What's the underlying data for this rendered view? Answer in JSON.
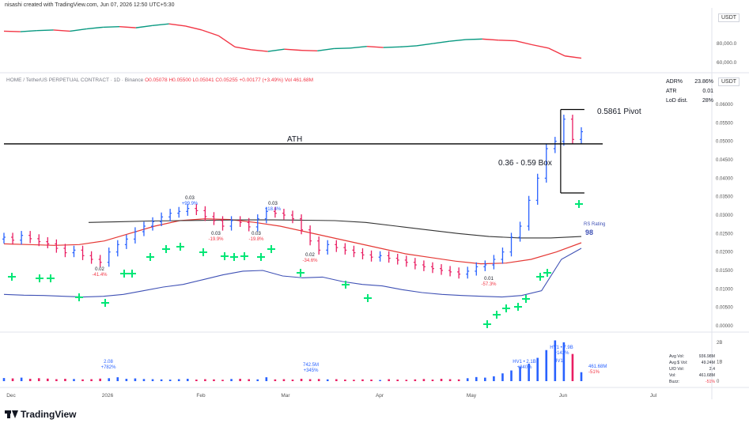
{
  "header": {
    "title": "nisashi created with TradingView.com, Jun 07, 2026 12:50 UTC+5:30",
    "top_currency": "USDT",
    "main_currency": "USDT"
  },
  "legend": {
    "symbol": "HOME / TetherUS PERPETUAL CONTRACT · 1D · Binance",
    "open": "O0.05078",
    "high": "H0.05500",
    "low": "L0.05041",
    "close": "C0.05255",
    "change": "+0.00177 (+3.49%)",
    "volume": "Vol 461.68M"
  },
  "stats": {
    "rows": [
      {
        "label": "ADR%",
        "value": "23.86%"
      },
      {
        "label": "ATR",
        "value": "0.01"
      },
      {
        "label": "LoD dist.",
        "value": "28%"
      }
    ]
  },
  "volume_stats": {
    "rows": [
      {
        "label": "Avg Vol:",
        "value": "936.98M"
      },
      {
        "label": "Avg $ Vol:",
        "value": "49.24M"
      },
      {
        "label": "U/D Vol:",
        "value": "2.4"
      },
      {
        "label": "Vol:",
        "value": "461.68M"
      },
      {
        "label": "Buzz:",
        "value": "-51%"
      }
    ]
  },
  "brand": {
    "logo_text": "TradingView"
  },
  "colors": {
    "up": "#089981",
    "down": "#f23645",
    "bar_up": "#2962ff",
    "bar_down": "#e91e63",
    "rs_line": "#3f51b5",
    "ma_red": "#e53935",
    "ma_black": "#333333",
    "marker_green": "#00e676"
  },
  "chart_data": {
    "type": "line",
    "title": "",
    "x_axis": {
      "tick_labels": [
        "Dec",
        "2026",
        "Feb",
        "Mar",
        "Apr",
        "May",
        "Jun",
        "Jul"
      ]
    },
    "top_panel": {
      "series_name": "",
      "y_tick_labels": [
        "80,000.0",
        "60,000.0"
      ],
      "values": [
        92000,
        91500,
        92500,
        93000,
        92000,
        94000,
        95500,
        96000,
        95000,
        97000,
        98500,
        96500,
        93000,
        88000,
        78000,
        75500,
        74000,
        76000,
        75000,
        74500,
        76500,
        77000,
        78500,
        77500,
        78000,
        79000,
        81000,
        83000,
        84500,
        85000,
        84000,
        83500,
        80000,
        77000,
        70000,
        68000
      ]
    },
    "main_panel": {
      "y_tick_labels": [
        "0.06000",
        "0.05500",
        "0.05000",
        "0.04500",
        "0.04000",
        "0.03500",
        "0.03000",
        "0.02500",
        "0.02000",
        "0.01500",
        "0.01000",
        "0.00500",
        "0.00000"
      ],
      "ylim": [
        0.0,
        0.06
      ],
      "candles": [
        {
          "o": 0.0235,
          "c": 0.024
        },
        {
          "o": 0.024,
          "c": 0.0232
        },
        {
          "o": 0.0232,
          "c": 0.0245
        },
        {
          "o": 0.0245,
          "c": 0.0236
        },
        {
          "o": 0.0236,
          "c": 0.0228
        },
        {
          "o": 0.0228,
          "c": 0.0222
        },
        {
          "o": 0.0222,
          "c": 0.021
        },
        {
          "o": 0.021,
          "c": 0.0198
        },
        {
          "o": 0.0198,
          "c": 0.0205
        },
        {
          "o": 0.0205,
          "c": 0.019
        },
        {
          "o": 0.019,
          "c": 0.018
        },
        {
          "o": 0.018,
          "c": 0.0172
        },
        {
          "o": 0.0172,
          "c": 0.02
        },
        {
          "o": 0.02,
          "c": 0.022
        },
        {
          "o": 0.022,
          "c": 0.0235
        },
        {
          "o": 0.0235,
          "c": 0.0255
        },
        {
          "o": 0.0255,
          "c": 0.027
        },
        {
          "o": 0.027,
          "c": 0.0282
        },
        {
          "o": 0.0282,
          "c": 0.0295
        },
        {
          "o": 0.0295,
          "c": 0.0305
        },
        {
          "o": 0.0305,
          "c": 0.031
        },
        {
          "o": 0.031,
          "c": 0.0318
        },
        {
          "o": 0.0318,
          "c": 0.0312
        },
        {
          "o": 0.0312,
          "c": 0.0296
        },
        {
          "o": 0.0296,
          "c": 0.0285
        },
        {
          "o": 0.0285,
          "c": 0.027
        },
        {
          "o": 0.027,
          "c": 0.0285
        },
        {
          "o": 0.0285,
          "c": 0.028
        },
        {
          "o": 0.028,
          "c": 0.0268
        },
        {
          "o": 0.0268,
          "c": 0.029
        },
        {
          "o": 0.029,
          "c": 0.031
        },
        {
          "o": 0.031,
          "c": 0.0305
        },
        {
          "o": 0.0305,
          "c": 0.03
        },
        {
          "o": 0.03,
          "c": 0.029
        },
        {
          "o": 0.029,
          "c": 0.026
        },
        {
          "o": 0.026,
          "c": 0.023
        },
        {
          "o": 0.023,
          "c": 0.0205
        },
        {
          "o": 0.0205,
          "c": 0.022
        },
        {
          "o": 0.022,
          "c": 0.0212
        },
        {
          "o": 0.0212,
          "c": 0.0205
        },
        {
          "o": 0.0205,
          "c": 0.0198
        },
        {
          "o": 0.0198,
          "c": 0.0192
        },
        {
          "o": 0.0192,
          "c": 0.0186
        },
        {
          "o": 0.0186,
          "c": 0.019
        },
        {
          "o": 0.019,
          "c": 0.0183
        },
        {
          "o": 0.0183,
          "c": 0.0178
        },
        {
          "o": 0.0178,
          "c": 0.0172
        },
        {
          "o": 0.0172,
          "c": 0.0165
        },
        {
          "o": 0.0165,
          "c": 0.016
        },
        {
          "o": 0.016,
          "c": 0.0155
        },
        {
          "o": 0.0155,
          "c": 0.015
        },
        {
          "o": 0.015,
          "c": 0.0146
        },
        {
          "o": 0.0146,
          "c": 0.014
        },
        {
          "o": 0.014,
          "c": 0.0148
        },
        {
          "o": 0.0148,
          "c": 0.016
        },
        {
          "o": 0.016,
          "c": 0.0165
        },
        {
          "o": 0.0165,
          "c": 0.018
        },
        {
          "o": 0.018,
          "c": 0.02
        },
        {
          "o": 0.02,
          "c": 0.024
        },
        {
          "o": 0.024,
          "c": 0.027
        },
        {
          "o": 0.027,
          "c": 0.034
        },
        {
          "o": 0.034,
          "c": 0.04
        },
        {
          "o": 0.04,
          "c": 0.048
        },
        {
          "o": 0.048,
          "c": 0.05
        },
        {
          "o": 0.05,
          "c": 0.056
        },
        {
          "o": 0.056,
          "c": 0.0505
        },
        {
          "o": 0.0505,
          "c": 0.0526
        }
      ],
      "rs_line": [
        0.0085,
        0.0083,
        0.0082,
        0.008,
        0.0078,
        0.008,
        0.0085,
        0.0095,
        0.0105,
        0.0112,
        0.0125,
        0.0138,
        0.0148,
        0.015,
        0.0135,
        0.013,
        0.0132,
        0.012,
        0.0112,
        0.0108,
        0.0098,
        0.009,
        0.0085,
        0.0082,
        0.008,
        0.0078,
        0.0082,
        0.0095,
        0.018,
        0.021
      ],
      "ma_red": [
        0.0222,
        0.022,
        0.0218,
        0.022,
        0.023,
        0.025,
        0.027,
        0.0285,
        0.029,
        0.0288,
        0.028,
        0.027,
        0.0255,
        0.024,
        0.0225,
        0.021,
        0.0195,
        0.0185,
        0.0175,
        0.0168,
        0.017,
        0.018,
        0.02,
        0.0225
      ],
      "ma_black": [
        0.028,
        0.0282,
        0.0284,
        0.0285,
        0.0286,
        0.0287,
        0.0287,
        0.0286,
        0.0285,
        0.028,
        0.027,
        0.026,
        0.025,
        0.0242,
        0.0238,
        0.0238,
        0.0242
      ],
      "ath_level": 0.0493,
      "pivot_level": 0.0586,
      "box_low": 0.036,
      "annotations": [
        {
          "text": "0.5861 Pivot"
        },
        {
          "text": "0.36 - 0.59 Box"
        },
        {
          "text": "ATH"
        },
        {
          "text": "RS Rating"
        },
        {
          "text": "98"
        }
      ],
      "swing_labels": [
        {
          "value": "0.02",
          "pct": "-41.4%"
        },
        {
          "value": "0.03",
          "pct": "+99.9%"
        },
        {
          "value": "0.03",
          "pct": "-19.9%"
        },
        {
          "value": "0.03",
          "pct": "-19.8%"
        },
        {
          "value": "0.03",
          "pct": "+18.4%"
        },
        {
          "value": "0.02",
          "pct": "-34.6%"
        },
        {
          "value": "0.01",
          "pct": "-57.3%"
        }
      ]
    },
    "volume_panel": {
      "y_tick_labels": [
        "2B",
        "1B",
        "0"
      ],
      "values": [
        0.16,
        0.14,
        0.18,
        0.12,
        0.15,
        0.13,
        0.1,
        0.12,
        0.11,
        0.09,
        0.1,
        0.13,
        0.15,
        0.2,
        0.12,
        0.14,
        0.11,
        0.1,
        0.09,
        0.08,
        0.1,
        0.12,
        0.08,
        0.1,
        0.09,
        0.07,
        0.11,
        0.12,
        0.1,
        0.09,
        0.2,
        0.09,
        0.1,
        0.08,
        0.12,
        0.1,
        0.11,
        0.09,
        0.1,
        0.08,
        0.07,
        0.09,
        0.08,
        0.06,
        0.1,
        0.08,
        0.07,
        0.09,
        0.11,
        0.08,
        0.12,
        0.1,
        0.09,
        0.15,
        0.21,
        0.18,
        0.25,
        0.4,
        0.55,
        0.75,
        0.9,
        1.2,
        1.6,
        2.1,
        2.0,
        1.4,
        0.46
      ],
      "labels": [
        {
          "text": "2.08",
          "pct": "+782%"
        },
        {
          "text": "742.5M",
          "pct": "+345%"
        },
        {
          "text": "HV1 • 2.1B",
          "pct": "+840%"
        },
        {
          "text": "HV1 • 7.9B",
          "pct": "+142%"
        },
        {
          "text": "HV1",
          "pct": ""
        },
        {
          "text": "461.68M",
          "pct": "-51%"
        }
      ]
    }
  }
}
